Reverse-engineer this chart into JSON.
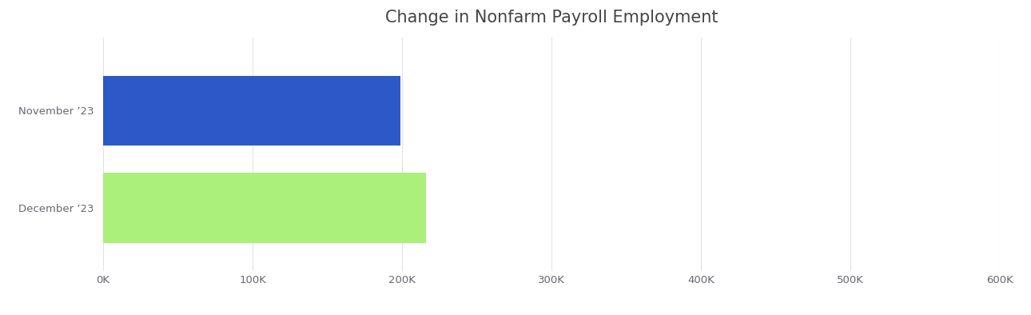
{
  "title": "Change in Nonfarm Payroll Employment",
  "categories": [
    "November ‣23",
    "December ‣23"
  ],
  "values": [
    199000,
    216000
  ],
  "bar_colors": [
    "#2d59c8",
    "#aaf07a"
  ],
  "background_color": "#ffffff",
  "plot_bg_color": "#ffffff",
  "xlim": [
    0,
    600000
  ],
  "xticks": [
    0,
    100000,
    200000,
    300000,
    400000,
    500000,
    600000
  ],
  "xtick_labels": [
    "0K",
    "100K",
    "200K",
    "300K",
    "400K",
    "500K",
    "600K"
  ],
  "title_fontsize": 15,
  "tick_fontsize": 9.5,
  "label_fontsize": 9.5,
  "bar_height": 0.72,
  "grid_color": "#e0e3e8",
  "text_color": "#666870"
}
